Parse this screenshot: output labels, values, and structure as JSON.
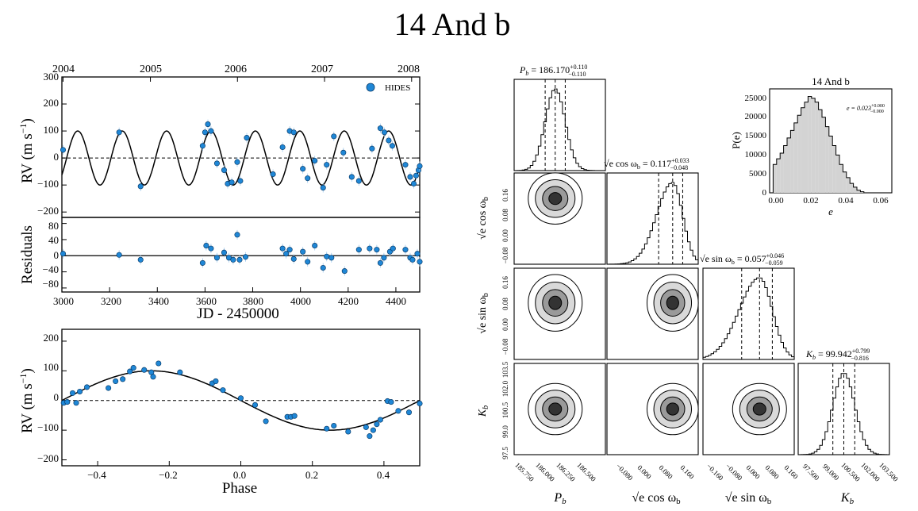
{
  "title": "14 And b",
  "rv_time": {
    "years": [
      "2004",
      "2005",
      "2006",
      "2007",
      "2008"
    ],
    "year_positions_jd": [
      3005,
      3371,
      3736,
      4101,
      4466
    ],
    "ylabel_main": "RV (m s",
    "ylabel_sup": "−1",
    "ylabel_close": ")",
    "xlim": [
      3000,
      4500
    ],
    "ylim": [
      -220,
      300
    ],
    "yticks": [
      "−200",
      "−100",
      "0",
      "100",
      "200",
      "300"
    ],
    "ytick_values": [
      -200,
      -100,
      0,
      100,
      200,
      300
    ],
    "legend": "HIDES",
    "colors": {
      "point": "#1f87d6",
      "model": "#000000"
    },
    "period": 186.17,
    "amplitude": 100,
    "t0": 3020,
    "points": [
      [
        3005,
        30
      ],
      [
        3240,
        95
      ],
      [
        3330,
        -105
      ],
      [
        3590,
        45
      ],
      [
        3600,
        95
      ],
      [
        3612,
        125
      ],
      [
        3625,
        100
      ],
      [
        3650,
        -20
      ],
      [
        3680,
        -45
      ],
      [
        3695,
        -95
      ],
      [
        3712,
        -90
      ],
      [
        3735,
        -15
      ],
      [
        3748,
        -85
      ],
      [
        3775,
        75
      ],
      [
        3885,
        -60
      ],
      [
        3925,
        40
      ],
      [
        3955,
        100
      ],
      [
        3972,
        95
      ],
      [
        4010,
        -40
      ],
      [
        4030,
        -75
      ],
      [
        4060,
        -10
      ],
      [
        4095,
        -110
      ],
      [
        4110,
        -25
      ],
      [
        4140,
        80
      ],
      [
        4180,
        20
      ],
      [
        4215,
        -70
      ],
      [
        4245,
        -85
      ],
      [
        4300,
        35
      ],
      [
        4335,
        110
      ],
      [
        4352,
        95
      ],
      [
        4370,
        65
      ],
      [
        4385,
        45
      ],
      [
        4440,
        -25
      ],
      [
        4460,
        -70
      ],
      [
        4475,
        -95
      ],
      [
        4485,
        -65
      ],
      [
        4495,
        -45
      ],
      [
        4500,
        -30
      ]
    ]
  },
  "residuals": {
    "ylabel": "Residuals",
    "xlabel": "JD - 2450000",
    "ylim": [
      -90,
      95
    ],
    "yticks": [
      "80",
      "40",
      "0",
      "−40",
      "−80"
    ],
    "ytick_values": [
      80,
      40,
      0,
      -40,
      -80
    ],
    "xticks": [
      "3000",
      "3200",
      "3400",
      "3600",
      "3800",
      "4000",
      "4200",
      "4400"
    ],
    "xtick_values": [
      3000,
      3200,
      3400,
      3600,
      3800,
      4000,
      4200,
      4400
    ],
    "points": [
      [
        3005,
        5
      ],
      [
        3240,
        2
      ],
      [
        3330,
        -10
      ],
      [
        3590,
        -18
      ],
      [
        3605,
        25
      ],
      [
        3625,
        18
      ],
      [
        3650,
        -5
      ],
      [
        3680,
        8
      ],
      [
        3700,
        -5
      ],
      [
        3718,
        -10
      ],
      [
        3735,
        52
      ],
      [
        3745,
        -10
      ],
      [
        3770,
        -3
      ],
      [
        3925,
        18
      ],
      [
        3940,
        5
      ],
      [
        3955,
        15
      ],
      [
        3972,
        -8
      ],
      [
        4010,
        10
      ],
      [
        4030,
        -15
      ],
      [
        4060,
        25
      ],
      [
        4095,
        -30
      ],
      [
        4110,
        -2
      ],
      [
        4130,
        -5
      ],
      [
        4185,
        -38
      ],
      [
        4245,
        15
      ],
      [
        4290,
        18
      ],
      [
        4320,
        15
      ],
      [
        4335,
        -18
      ],
      [
        4350,
        -5
      ],
      [
        4375,
        10
      ],
      [
        4388,
        18
      ],
      [
        4440,
        15
      ],
      [
        4460,
        -5
      ],
      [
        4470,
        -10
      ],
      [
        4490,
        5
      ],
      [
        4500,
        -15
      ]
    ]
  },
  "rv_phase": {
    "ylabel_main": "RV (m s",
    "ylabel_sup": "−1",
    "ylabel_close": ")",
    "xlabel": "Phase",
    "xlim": [
      -0.5,
      0.5
    ],
    "ylim": [
      -220,
      240
    ],
    "yticks": [
      "−200",
      "−100",
      "0",
      "100",
      "200"
    ],
    "ytick_values": [
      -200,
      -100,
      0,
      100,
      200
    ],
    "xticks": [
      "−0.4",
      "−0.2",
      "0.0",
      "0.2",
      "0.4"
    ],
    "xtick_values": [
      -0.4,
      -0.2,
      0.0,
      0.2,
      0.4
    ],
    "points": [
      [
        -0.495,
        -8
      ],
      [
        -0.485,
        -5
      ],
      [
        -0.47,
        25
      ],
      [
        -0.46,
        -8
      ],
      [
        -0.45,
        30
      ],
      [
        -0.43,
        45
      ],
      [
        -0.37,
        42
      ],
      [
        -0.35,
        65
      ],
      [
        -0.33,
        72
      ],
      [
        -0.31,
        98
      ],
      [
        -0.3,
        110
      ],
      [
        -0.27,
        103
      ],
      [
        -0.25,
        95
      ],
      [
        -0.245,
        80
      ],
      [
        -0.23,
        125
      ],
      [
        -0.17,
        95
      ],
      [
        -0.08,
        58
      ],
      [
        -0.07,
        65
      ],
      [
        -0.05,
        35
      ],
      [
        0.0,
        8
      ],
      [
        0.04,
        -15
      ],
      [
        0.07,
        -70
      ],
      [
        0.13,
        -55
      ],
      [
        0.14,
        -55
      ],
      [
        0.15,
        -52
      ],
      [
        0.24,
        -95
      ],
      [
        0.26,
        -85
      ],
      [
        0.3,
        -105
      ],
      [
        0.35,
        -90
      ],
      [
        0.36,
        -120
      ],
      [
        0.37,
        -100
      ],
      [
        0.38,
        -80
      ],
      [
        0.39,
        -65
      ],
      [
        0.41,
        -2
      ],
      [
        0.42,
        -5
      ],
      [
        0.44,
        -35
      ],
      [
        0.47,
        -40
      ],
      [
        0.5,
        -10
      ]
    ]
  },
  "corner": {
    "params": {
      "P": {
        "label": "P",
        "sub": "b",
        "value": "= 186.170",
        "plus": "+0.110",
        "minus": "−0.110"
      },
      "C": {
        "label": "√e cos ω",
        "sub": "b",
        "value": "= 0.117",
        "plus": "+0.033",
        "minus": "−0.048"
      },
      "S": {
        "label": "√e sin ω",
        "sub": "b",
        "value": "= 0.057",
        "plus": "+0.046",
        "minus": "−0.059"
      },
      "K": {
        "label": "K",
        "sub": "b",
        "value": "= 99.942",
        "plus": "+0.799",
        "minus": "−0.816"
      }
    },
    "y_label_C": "√e cos ω",
    "y_label_C_sub": "b",
    "y_label_S": "√e sin ω",
    "y_label_S_sub": "b",
    "y_label_K": "K",
    "y_label_K_sub": "b",
    "x_label_P": "P",
    "x_label_P_sub": "b",
    "x_label_C": "√e cos ω",
    "x_label_C_sub": "b",
    "x_label_S": "√e sin ω",
    "x_label_S_sub": "b",
    "x_label_K": "K",
    "x_label_K_sub": "b",
    "yticks_C": [
      "0.16",
      "0.08",
      "0.00",
      "−0.08"
    ],
    "yticks_S": [
      "0.16",
      "0.08",
      "0.00",
      "−0.08"
    ],
    "yticks_K": [
      "103.5",
      "102.0",
      "100.5",
      "99.0",
      "97.5"
    ],
    "xticks_P": [
      "185.750",
      "186.000",
      "186.250",
      "186.500"
    ],
    "xticks_C": [
      "−0.080",
      "0.000",
      "0.080",
      "0.160"
    ],
    "xticks_S": [
      "−0.160",
      "−0.080",
      "0.000",
      "0.080",
      "0.160"
    ],
    "xticks_K": [
      "97.500",
      "99.000",
      "100.500",
      "102.000",
      "103.500"
    ]
  },
  "ecc_hist": {
    "title": "14 And b",
    "xlabel": "e",
    "ylabel": "P(e)",
    "annotation": "e = 0.023",
    "annotation_plus": "+0.000",
    "annotation_minus": "−0.000",
    "yticks": [
      "0",
      "5000",
      "10000",
      "15000",
      "20000",
      "25000"
    ],
    "ytick_values": [
      0,
      5000,
      10000,
      15000,
      20000,
      25000
    ],
    "xticks": [
      "0.00",
      "0.02",
      "0.04",
      "0.06"
    ],
    "xtick_values": [
      0.0,
      0.02,
      0.04,
      0.06
    ],
    "xlim": [
      -0.002,
      0.068
    ],
    "ylim": [
      0,
      27500
    ],
    "fill": "#d3d3d3"
  },
  "chart_data": [
    {
      "type": "scatter",
      "title": "14 And b",
      "xlabel": "JD - 2450000",
      "ylabel": "RV (m s^-1)",
      "series": [
        {
          "name": "HIDES",
          "x": [
            3005,
            3240,
            3330,
            3590,
            3600,
            3612,
            3625,
            3650,
            3680,
            3695,
            3712,
            3735,
            3748,
            3775,
            3885,
            3925,
            3955,
            3972,
            4010,
            4030,
            4060,
            4095,
            4110,
            4140,
            4180,
            4215,
            4245,
            4300,
            4335,
            4352,
            4370,
            4385,
            4440,
            4460,
            4475,
            4485,
            4495,
            4500
          ],
          "values": [
            30,
            95,
            -105,
            45,
            95,
            125,
            100,
            -20,
            -45,
            -95,
            -90,
            -15,
            -85,
            75,
            -60,
            40,
            100,
            95,
            -40,
            -75,
            -10,
            -110,
            -25,
            80,
            20,
            -70,
            -85,
            35,
            110,
            95,
            65,
            45,
            -25,
            -70,
            -95,
            -65,
            -45,
            -30
          ]
        }
      ],
      "model": "sinusoid, P = 186.17 d, K = 100 m/s",
      "xlim": [
        3000,
        4500
      ],
      "ylim": [
        -220,
        300
      ]
    },
    {
      "type": "scatter",
      "ylabel": "Residuals",
      "xlabel": "JD - 2450000",
      "ylim": [
        -90,
        95
      ]
    },
    {
      "type": "scatter",
      "xlabel": "Phase",
      "ylabel": "RV (m s^-1)",
      "xlim": [
        -0.5,
        0.5
      ],
      "ylim": [
        -220,
        240
      ]
    },
    {
      "type": "heatmap",
      "title": "corner plot of posterior (P_b, sqrt(e)cos w_b, sqrt(e)sin w_b, K_b)",
      "medians": {
        "P_b": 186.17,
        "sqrt_e_cos_w_b": 0.117,
        "sqrt_e_sin_w_b": 0.057,
        "K_b": 99.942
      }
    },
    {
      "type": "bar",
      "title": "14 And b",
      "xlabel": "e",
      "ylabel": "P(e)",
      "categories": [
        0.0,
        0.002,
        0.004,
        0.006,
        0.008,
        0.01,
        0.012,
        0.014,
        0.016,
        0.018,
        0.02,
        0.022,
        0.024,
        0.026,
        0.028,
        0.03,
        0.032,
        0.034,
        0.036,
        0.038,
        0.04,
        0.042,
        0.044,
        0.046,
        0.048,
        0.05
      ],
      "values": [
        7500,
        9000,
        10500,
        12500,
        14500,
        16500,
        18500,
        20500,
        22500,
        24000,
        25500,
        25000,
        24000,
        22000,
        20000,
        17500,
        15000,
        12500,
        10000,
        7500,
        5500,
        4000,
        2500,
        1500,
        700,
        300
      ]
    }
  ]
}
